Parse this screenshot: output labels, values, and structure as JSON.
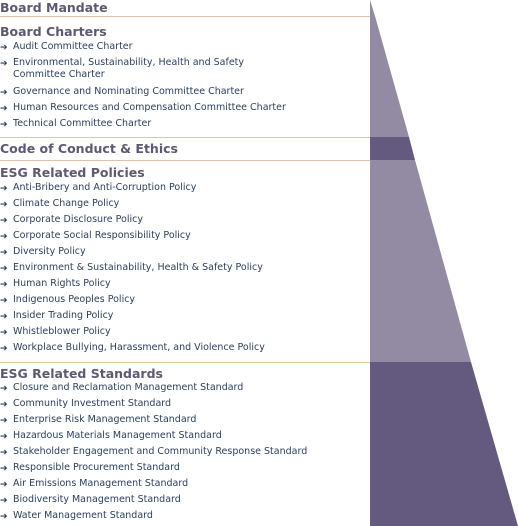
{
  "colors": {
    "title": "#5e5870",
    "item_text": "#2b3f5c",
    "rule": "#e3c3a6",
    "pyramid_light": "#938ba4",
    "pyramid_dark": "#645a80"
  },
  "icons": {
    "bullet": "arrow-right-icon"
  },
  "sections": [
    {
      "title": "Board Mandate",
      "items": []
    },
    {
      "title": "Board Charters",
      "items": [
        "Audit Committee Charter",
        "Environmental, Sustainability, Health and Safety Committee Charter",
        "Governance and Nominating Committee Charter",
        "Human Resources and Compensation Committee Charter",
        "Technical Committee Charter"
      ]
    },
    {
      "title": "Code of Conduct & Ethics",
      "items": []
    },
    {
      "title": "ESG Related Policies",
      "items": [
        "Anti-Bribery and Anti-Corruption Policy",
        "Climate Change Policy",
        "Corporate Disclosure Policy",
        "Corporate Social Responsibility Policy",
        "Diversity Policy",
        "Environment & Sustainability, Health & Safety Policy",
        "Human Rights Policy",
        "Indigenous Peoples Policy",
        "Insider Trading Policy",
        "Whistleblower Policy",
        "Workplace Bullying, Harassment, and Violence Policy"
      ]
    },
    {
      "title": "ESG Related Standards",
      "items": [
        "Closure and Reclamation Management Standard",
        "Community Investment Standard",
        "Enterprise Risk Management Standard",
        "Hazardous Materials Management Standard",
        "Stakeholder Engagement and Community Response Standard",
        "Responsible Procurement Standard",
        "Air Emissions Management Standard",
        "Biodiversity Management Standard",
        "Water Management Standard"
      ]
    }
  ]
}
